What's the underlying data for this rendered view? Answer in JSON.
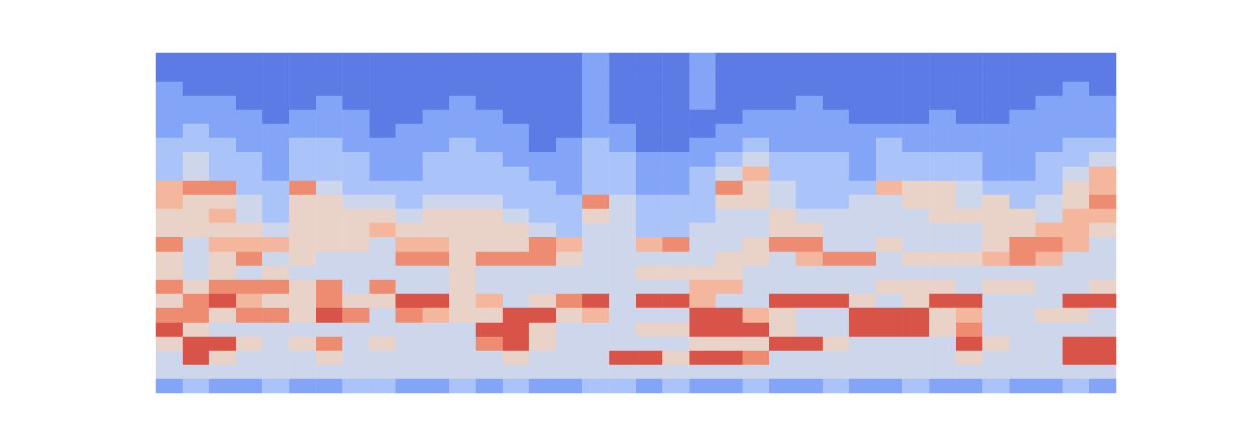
{
  "chart_data": {
    "type": "heatmap",
    "tick_labels": false,
    "value_range": [
      0,
      9
    ],
    "cells": [
      [
        1,
        1,
        1,
        1,
        1,
        1,
        1,
        1,
        1,
        1,
        1,
        1,
        1,
        1,
        1,
        1,
        2,
        1,
        1,
        1,
        2,
        1,
        1,
        1,
        1,
        1,
        1,
        1,
        1,
        1,
        1,
        1,
        1,
        1,
        1,
        1
      ],
      [
        1,
        1,
        1,
        1,
        1,
        1,
        1,
        1,
        1,
        1,
        1,
        1,
        1,
        1,
        1,
        1,
        2,
        1,
        1,
        1,
        2,
        1,
        1,
        1,
        1,
        1,
        1,
        1,
        1,
        1,
        1,
        1,
        1,
        1,
        1,
        1
      ],
      [
        2,
        1,
        1,
        1,
        1,
        1,
        1,
        1,
        1,
        1,
        1,
        1,
        1,
        1,
        1,
        1,
        2,
        1,
        1,
        1,
        2,
        1,
        1,
        1,
        1,
        1,
        1,
        1,
        1,
        1,
        1,
        1,
        1,
        1,
        2,
        1
      ],
      [
        2,
        2,
        2,
        1,
        1,
        1,
        2,
        1,
        1,
        1,
        1,
        2,
        1,
        1,
        1,
        1,
        2,
        1,
        1,
        1,
        2,
        1,
        1,
        1,
        2,
        1,
        1,
        1,
        1,
        1,
        1,
        1,
        1,
        2,
        2,
        2
      ],
      [
        2,
        2,
        2,
        2,
        1,
        2,
        2,
        2,
        1,
        1,
        2,
        2,
        2,
        1,
        1,
        1,
        2,
        1,
        1,
        1,
        1,
        1,
        2,
        2,
        2,
        2,
        1,
        1,
        1,
        2,
        1,
        1,
        2,
        2,
        2,
        2
      ],
      [
        2,
        3,
        2,
        2,
        2,
        2,
        2,
        2,
        1,
        2,
        2,
        2,
        2,
        2,
        1,
        1,
        2,
        2,
        1,
        1,
        1,
        2,
        2,
        2,
        2,
        2,
        2,
        2,
        2,
        2,
        2,
        2,
        2,
        2,
        2,
        2
      ],
      [
        3,
        3,
        3,
        2,
        2,
        3,
        3,
        2,
        2,
        2,
        2,
        3,
        2,
        2,
        1,
        2,
        3,
        2,
        1,
        1,
        2,
        2,
        3,
        2,
        2,
        2,
        2,
        3,
        2,
        2,
        2,
        2,
        2,
        2,
        3,
        3
      ],
      [
        3,
        4,
        3,
        3,
        2,
        3,
        3,
        3,
        2,
        2,
        3,
        3,
        3,
        2,
        2,
        2,
        3,
        3,
        2,
        2,
        2,
        3,
        4,
        3,
        3,
        3,
        2,
        3,
        3,
        3,
        3,
        2,
        2,
        3,
        3,
        4
      ],
      [
        3,
        4,
        3,
        3,
        2,
        3,
        3,
        3,
        2,
        2,
        3,
        3,
        3,
        3,
        2,
        2,
        3,
        3,
        2,
        2,
        3,
        4,
        6,
        3,
        3,
        3,
        2,
        3,
        3,
        3,
        3,
        2,
        2,
        3,
        4,
        6
      ],
      [
        6,
        7,
        7,
        3,
        3,
        7,
        4,
        3,
        3,
        3,
        3,
        3,
        3,
        3,
        3,
        2,
        3,
        3,
        2,
        2,
        3,
        7,
        5,
        4,
        3,
        3,
        3,
        6,
        5,
        5,
        4,
        3,
        3,
        3,
        5,
        6
      ],
      [
        6,
        5,
        5,
        4,
        3,
        5,
        5,
        4,
        4,
        3,
        4,
        4,
        4,
        3,
        3,
        3,
        7,
        4,
        3,
        3,
        3,
        5,
        5,
        4,
        3,
        3,
        4,
        4,
        5,
        5,
        4,
        5,
        3,
        4,
        5,
        7
      ],
      [
        5,
        5,
        6,
        4,
        3,
        5,
        5,
        5,
        5,
        4,
        5,
        5,
        5,
        4,
        3,
        3,
        5,
        4,
        3,
        3,
        3,
        4,
        4,
        5,
        4,
        4,
        4,
        4,
        4,
        5,
        5,
        5,
        5,
        4,
        6,
        6
      ],
      [
        5,
        5,
        5,
        5,
        4,
        5,
        5,
        5,
        6,
        5,
        5,
        5,
        5,
        5,
        4,
        3,
        4,
        4,
        3,
        3,
        4,
        4,
        4,
        5,
        5,
        4,
        4,
        4,
        4,
        4,
        4,
        5,
        5,
        6,
        6,
        5
      ],
      [
        7,
        4,
        6,
        6,
        6,
        5,
        5,
        5,
        4,
        6,
        6,
        5,
        5,
        5,
        7,
        6,
        4,
        4,
        6,
        7,
        4,
        4,
        5,
        7,
        7,
        4,
        4,
        5,
        4,
        4,
        4,
        5,
        7,
        7,
        6,
        4
      ],
      [
        5,
        4,
        5,
        7,
        4,
        5,
        4,
        4,
        4,
        7,
        7,
        5,
        7,
        7,
        7,
        5,
        4,
        4,
        4,
        4,
        4,
        5,
        5,
        4,
        6,
        7,
        7,
        4,
        5,
        5,
        5,
        6,
        7,
        6,
        4,
        4
      ],
      [
        5,
        4,
        5,
        4,
        5,
        4,
        4,
        4,
        4,
        4,
        4,
        5,
        4,
        4,
        4,
        4,
        4,
        4,
        5,
        5,
        5,
        5,
        4,
        4,
        4,
        4,
        4,
        4,
        4,
        4,
        4,
        4,
        4,
        4,
        4,
        4
      ],
      [
        7,
        5,
        7,
        7,
        7,
        5,
        7,
        4,
        7,
        4,
        4,
        5,
        4,
        4,
        4,
        4,
        4,
        4,
        4,
        4,
        6,
        6,
        4,
        4,
        4,
        4,
        4,
        5,
        5,
        5,
        4,
        5,
        5,
        4,
        4,
        5
      ],
      [
        5,
        7,
        8,
        6,
        5,
        5,
        7,
        5,
        5,
        8,
        8,
        5,
        6,
        4,
        5,
        7,
        8,
        4,
        8,
        8,
        6,
        4,
        4,
        8,
        8,
        8,
        5,
        4,
        5,
        8,
        8,
        4,
        4,
        4,
        8,
        8
      ],
      [
        7,
        7,
        5,
        7,
        7,
        5,
        8,
        7,
        4,
        7,
        6,
        5,
        5,
        8,
        8,
        5,
        6,
        4,
        4,
        4,
        8,
        8,
        6,
        5,
        4,
        4,
        8,
        8,
        8,
        5,
        6,
        4,
        4,
        5,
        5,
        4
      ],
      [
        8,
        5,
        4,
        4,
        4,
        4,
        4,
        4,
        4,
        4,
        4,
        4,
        8,
        8,
        5,
        4,
        4,
        4,
        5,
        5,
        8,
        8,
        8,
        5,
        4,
        4,
        8,
        8,
        8,
        5,
        7,
        4,
        4,
        4,
        4,
        4
      ],
      [
        5,
        8,
        8,
        5,
        4,
        5,
        7,
        4,
        5,
        4,
        4,
        4,
        7,
        8,
        5,
        4,
        4,
        4,
        4,
        4,
        5,
        5,
        5,
        8,
        8,
        5,
        4,
        4,
        4,
        4,
        8,
        5,
        4,
        4,
        8,
        8
      ],
      [
        4,
        8,
        5,
        4,
        4,
        4,
        5,
        4,
        4,
        4,
        4,
        4,
        4,
        5,
        4,
        4,
        4,
        8,
        8,
        5,
        8,
        8,
        7,
        4,
        4,
        4,
        4,
        4,
        4,
        4,
        5,
        4,
        4,
        4,
        8,
        8
      ],
      [
        4,
        4,
        4,
        4,
        4,
        4,
        4,
        4,
        4,
        4,
        4,
        4,
        4,
        4,
        4,
        4,
        4,
        4,
        4,
        4,
        4,
        4,
        4,
        4,
        4,
        4,
        4,
        4,
        4,
        4,
        4,
        4,
        4,
        4,
        4,
        4
      ],
      [
        2,
        3,
        2,
        2,
        3,
        2,
        2,
        3,
        3,
        2,
        2,
        3,
        2,
        3,
        2,
        2,
        3,
        3,
        2,
        3,
        2,
        2,
        3,
        2,
        2,
        3,
        2,
        2,
        3,
        2,
        2,
        3,
        2,
        2,
        3,
        2
      ]
    ]
  }
}
